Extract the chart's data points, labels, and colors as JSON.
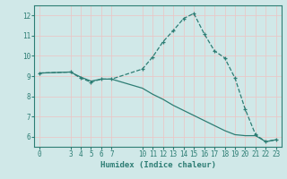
{
  "title": "",
  "xlabel": "Humidex (Indice chaleur)",
  "ylabel": "",
  "bg_color": "#d0e8e8",
  "line_color": "#2d7d74",
  "grid_color_major": "#e8c8c8",
  "grid_color_minor": "#e8c8c8",
  "axis_color": "#2d7d74",
  "line1_x": [
    0,
    3,
    4,
    5,
    6,
    7,
    10,
    11,
    12,
    13,
    14,
    15,
    16,
    17,
    18,
    19,
    20,
    21,
    22,
    23
  ],
  "line1_y": [
    9.15,
    9.2,
    8.9,
    8.7,
    8.85,
    8.85,
    9.35,
    9.95,
    10.7,
    11.25,
    11.85,
    12.1,
    11.1,
    10.25,
    9.9,
    8.9,
    7.35,
    6.1,
    5.75,
    5.85
  ],
  "line2_x": [
    0,
    3,
    4,
    5,
    6,
    7,
    10,
    11,
    12,
    13,
    14,
    15,
    16,
    17,
    18,
    19,
    20,
    21,
    22,
    23
  ],
  "line2_y": [
    9.15,
    9.2,
    8.95,
    8.75,
    8.85,
    8.85,
    8.4,
    8.1,
    7.85,
    7.55,
    7.3,
    7.05,
    6.8,
    6.55,
    6.3,
    6.1,
    6.05,
    6.05,
    5.75,
    5.85
  ],
  "xlim": [
    -0.5,
    23.5
  ],
  "ylim": [
    5.5,
    12.5
  ],
  "xticks": [
    0,
    3,
    4,
    5,
    6,
    7,
    10,
    11,
    12,
    13,
    14,
    15,
    16,
    17,
    18,
    19,
    20,
    21,
    22,
    23
  ],
  "yticks": [
    6,
    7,
    8,
    9,
    10,
    11,
    12
  ],
  "xlabel_fontsize": 6.5,
  "tick_fontsize": 5.5,
  "marker": "+"
}
